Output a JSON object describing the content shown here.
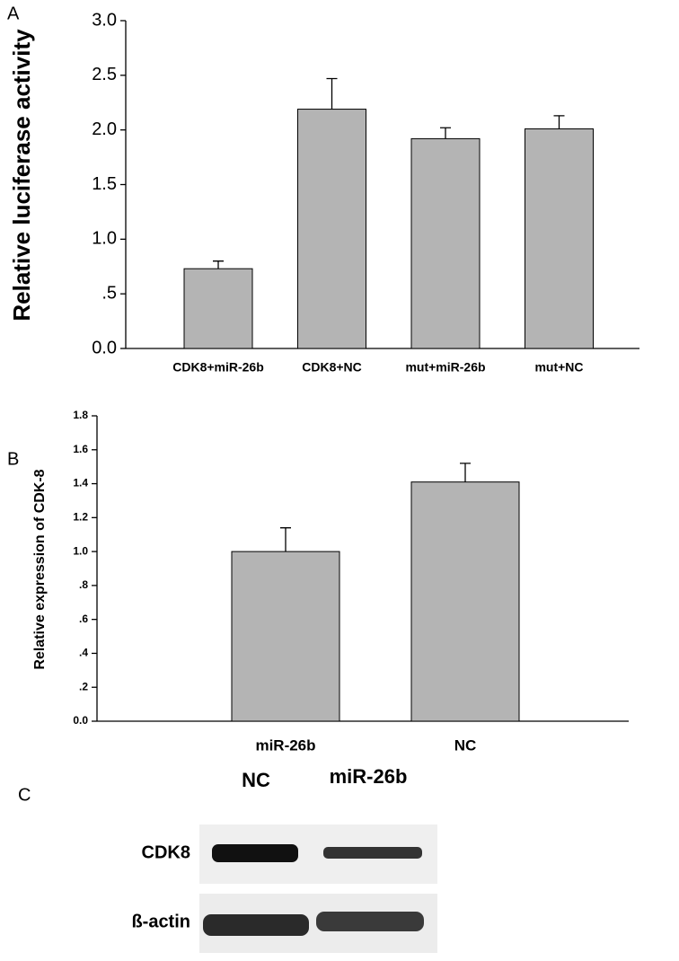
{
  "chart_data": [
    {
      "type": "bar",
      "panel_label": "A",
      "ylabel": "Relative luciferase activity",
      "categories": [
        "CDK8+miR-26b",
        "CDK8+NC",
        "mut+miR-26b",
        "mut+NC"
      ],
      "values": [
        0.73,
        2.19,
        1.92,
        2.01
      ],
      "errors": [
        0.07,
        0.28,
        0.1,
        0.12
      ],
      "color": "#b4b4b4",
      "ylim": [
        0,
        3
      ],
      "yticks": [
        {
          "value": 0,
          "label": "0.0"
        },
        {
          "value": 0.5,
          "label": ".5"
        },
        {
          "value": 1,
          "label": "1.0"
        },
        1.5,
        {
          "value": 2,
          "label": "2.0"
        },
        2.5,
        {
          "value": 3,
          "label": "3.0"
        }
      ]
    },
    {
      "type": "bar",
      "panel_label": "B",
      "ylabel": "Relative expression of CDK-8",
      "categories": [
        "miR-26b",
        "NC"
      ],
      "values": [
        1.0,
        1.41
      ],
      "errors": [
        0.14,
        0.11
      ],
      "color": "#b4b4b4",
      "ylim": [
        0,
        1.8
      ],
      "yticks": [
        {
          "value": 0,
          "label": "0.0"
        },
        {
          "value": 0.2,
          "label": ".2"
        },
        {
          "value": 0.4,
          "label": ".4"
        },
        {
          "value": 0.6,
          "label": ".6"
        },
        {
          "value": 0.8,
          "label": ".8"
        },
        {
          "value": 1,
          "label": "1.0"
        },
        1.2,
        1.4,
        1.6,
        1.8
      ]
    }
  ],
  "blot": {
    "panel_label": "C",
    "lanes": [
      "NC",
      "miR-26b"
    ],
    "rows": [
      "CDK8",
      "ß-actin"
    ]
  }
}
